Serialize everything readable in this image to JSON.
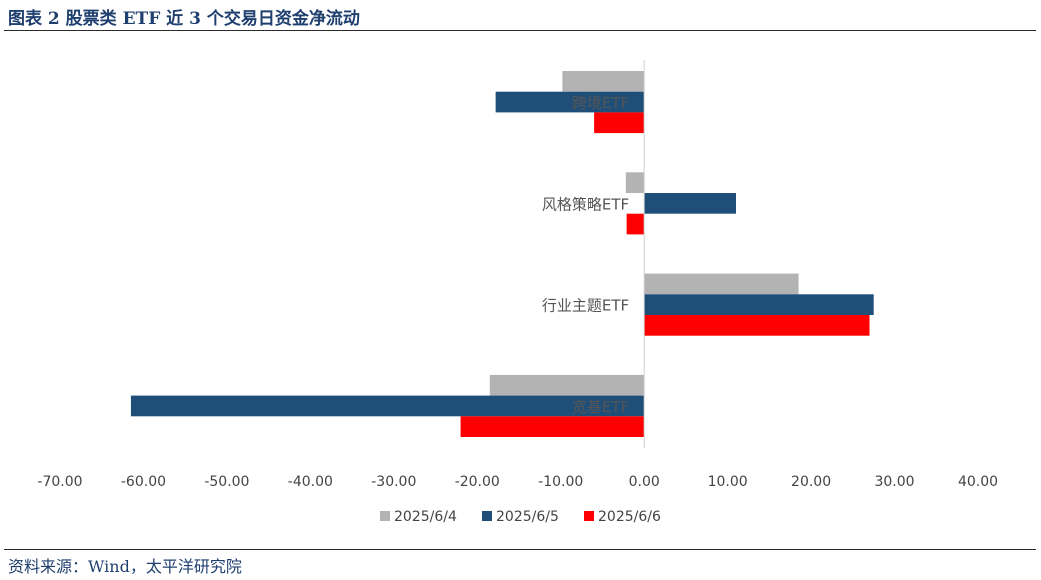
{
  "title": "图表 2  股票类 ETF 近 3 个交易日资金净流动",
  "source": "资料来源：Wind，太平洋研究院",
  "colors": {
    "series1": "#b3b3b3",
    "series2": "#1f4e79",
    "series3": "#ff0000"
  },
  "chart_data": {
    "type": "bar",
    "orientation": "horizontal",
    "categories": [
      "跨境ETF",
      "风格策略ETF",
      "行业主题ETF",
      "宽基ETF"
    ],
    "series": [
      {
        "name": "2025/6/4",
        "values": [
          -9.8,
          -2.2,
          18.5,
          -18.5
        ]
      },
      {
        "name": "2025/6/5",
        "values": [
          -17.8,
          11.0,
          27.5,
          -61.5
        ]
      },
      {
        "name": "2025/6/6",
        "values": [
          -6.0,
          -2.1,
          27.0,
          -22.0
        ]
      }
    ],
    "xlim": [
      -70,
      40
    ],
    "xticks": [
      "-70.00",
      "-60.00",
      "-50.00",
      "-40.00",
      "-30.00",
      "-20.00",
      "-10.00",
      "0.00",
      "10.00",
      "20.00",
      "30.00",
      "40.00"
    ],
    "legend_position": "bottom",
    "grid": false
  }
}
